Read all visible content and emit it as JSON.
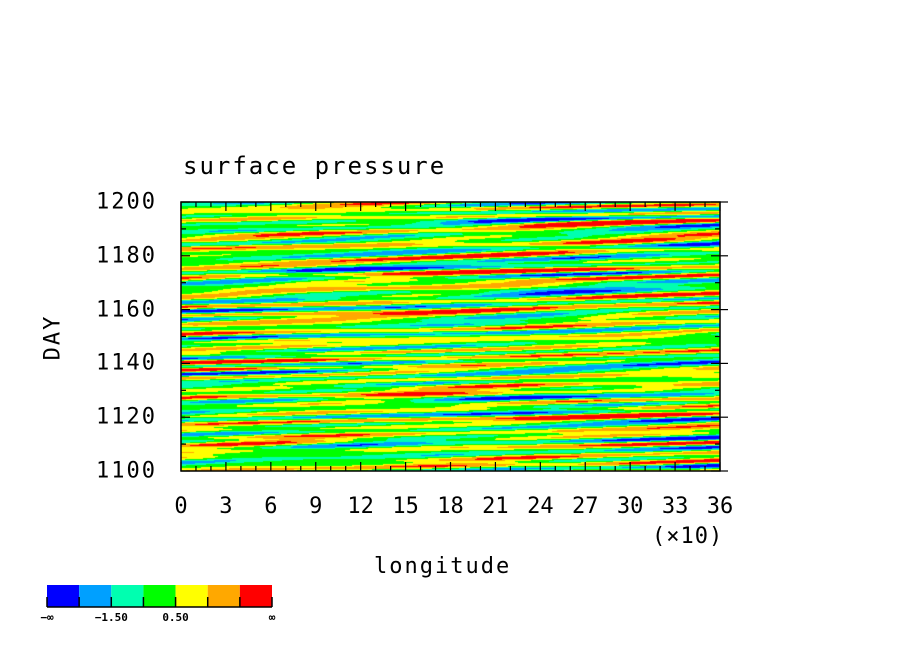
{
  "chart_data": {
    "type": "heatmap",
    "title": "surface pressure",
    "xlabel": "longitude",
    "ylabel": "DAY",
    "x_scale_label": "(×10)",
    "xlim": [
      0,
      360
    ],
    "ylim": [
      1100,
      1200
    ],
    "x_tick_labels": [
      "0",
      "3",
      "6",
      "9",
      "12",
      "15",
      "18",
      "21",
      "24",
      "27",
      "30",
      "33",
      "36"
    ],
    "y_tick_labels": [
      "1100",
      "1120",
      "1140",
      "1160",
      "1180",
      "1200"
    ],
    "colorbar": {
      "colors": [
        "#0000ff",
        "#00a0ff",
        "#00ffb0",
        "#00ff00",
        "#ffff00",
        "#ffa800",
        "#ff0000"
      ],
      "levels": [
        -2.5,
        -1.5,
        -0.5,
        0.5,
        1.5,
        2.5
      ],
      "labels": [
        "−∞",
        "−1.50",
        "0.50",
        "∞"
      ]
    }
  }
}
